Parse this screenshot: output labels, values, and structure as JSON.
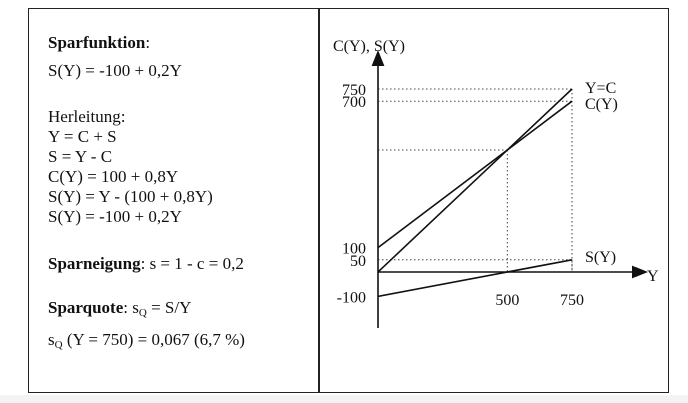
{
  "left": {
    "title": "Sparfunktion",
    "title_suffix": ":",
    "formula": "S(Y) = -100 + 0,2Y",
    "derivation_label": "Herleitung:",
    "derivation": [
      "Y = C + S",
      "S = Y - C",
      "C(Y) =  100 + 0,8Y",
      "S(Y) =  Y - (100 + 0,8Y)",
      "S(Y) = -100 + 0,2Y"
    ],
    "neigung_label": "Sparneigung",
    "neigung_text": ": s = 1 - c =  0,2",
    "quote_label": "Sparquote",
    "quote_text_pre": ": s",
    "quote_sub": "Q",
    "quote_text_post": " = S/Y",
    "quote_calc_pre": "s",
    "quote_calc_sub": "Q",
    "quote_calc_post": " (Y = 750) = 0,067  (6,7 %)"
  },
  "chart_data": {
    "type": "line",
    "ylabel": "C(Y), S(Y)",
    "xlabel": "Y",
    "xlim": [
      0,
      750
    ],
    "ylim": [
      -100,
      750
    ],
    "xticks": [
      {
        "v": 500,
        "label": "500"
      },
      {
        "v": 750,
        "label": "750"
      }
    ],
    "yticks": [
      {
        "v": 750,
        "label": "750"
      },
      {
        "v": 700,
        "label": "700"
      },
      {
        "v": 100,
        "label": "100"
      },
      {
        "v": 50,
        "label": "50"
      },
      {
        "v": -100,
        "label": "-100"
      }
    ],
    "series": [
      {
        "name": "Y=C",
        "x": [
          0,
          750
        ],
        "y": [
          0,
          750
        ]
      },
      {
        "name": "C(Y)",
        "x": [
          0,
          750
        ],
        "y": [
          100,
          700
        ]
      },
      {
        "name": "S(Y)",
        "x": [
          0,
          750
        ],
        "y": [
          -100,
          50
        ]
      }
    ],
    "guides": [
      {
        "from": [
          0,
          750
        ],
        "to": [
          750,
          750
        ]
      },
      {
        "from": [
          750,
          750
        ],
        "to": [
          750,
          0
        ]
      },
      {
        "from": [
          0,
          700
        ],
        "to": [
          750,
          700
        ]
      },
      {
        "from": [
          0,
          500
        ],
        "to": [
          500,
          500
        ]
      },
      {
        "from": [
          500,
          500
        ],
        "to": [
          500,
          0
        ]
      },
      {
        "from": [
          0,
          50
        ],
        "to": [
          750,
          50
        ]
      },
      {
        "from": [
          750,
          50
        ],
        "to": [
          750,
          0
        ]
      }
    ]
  }
}
